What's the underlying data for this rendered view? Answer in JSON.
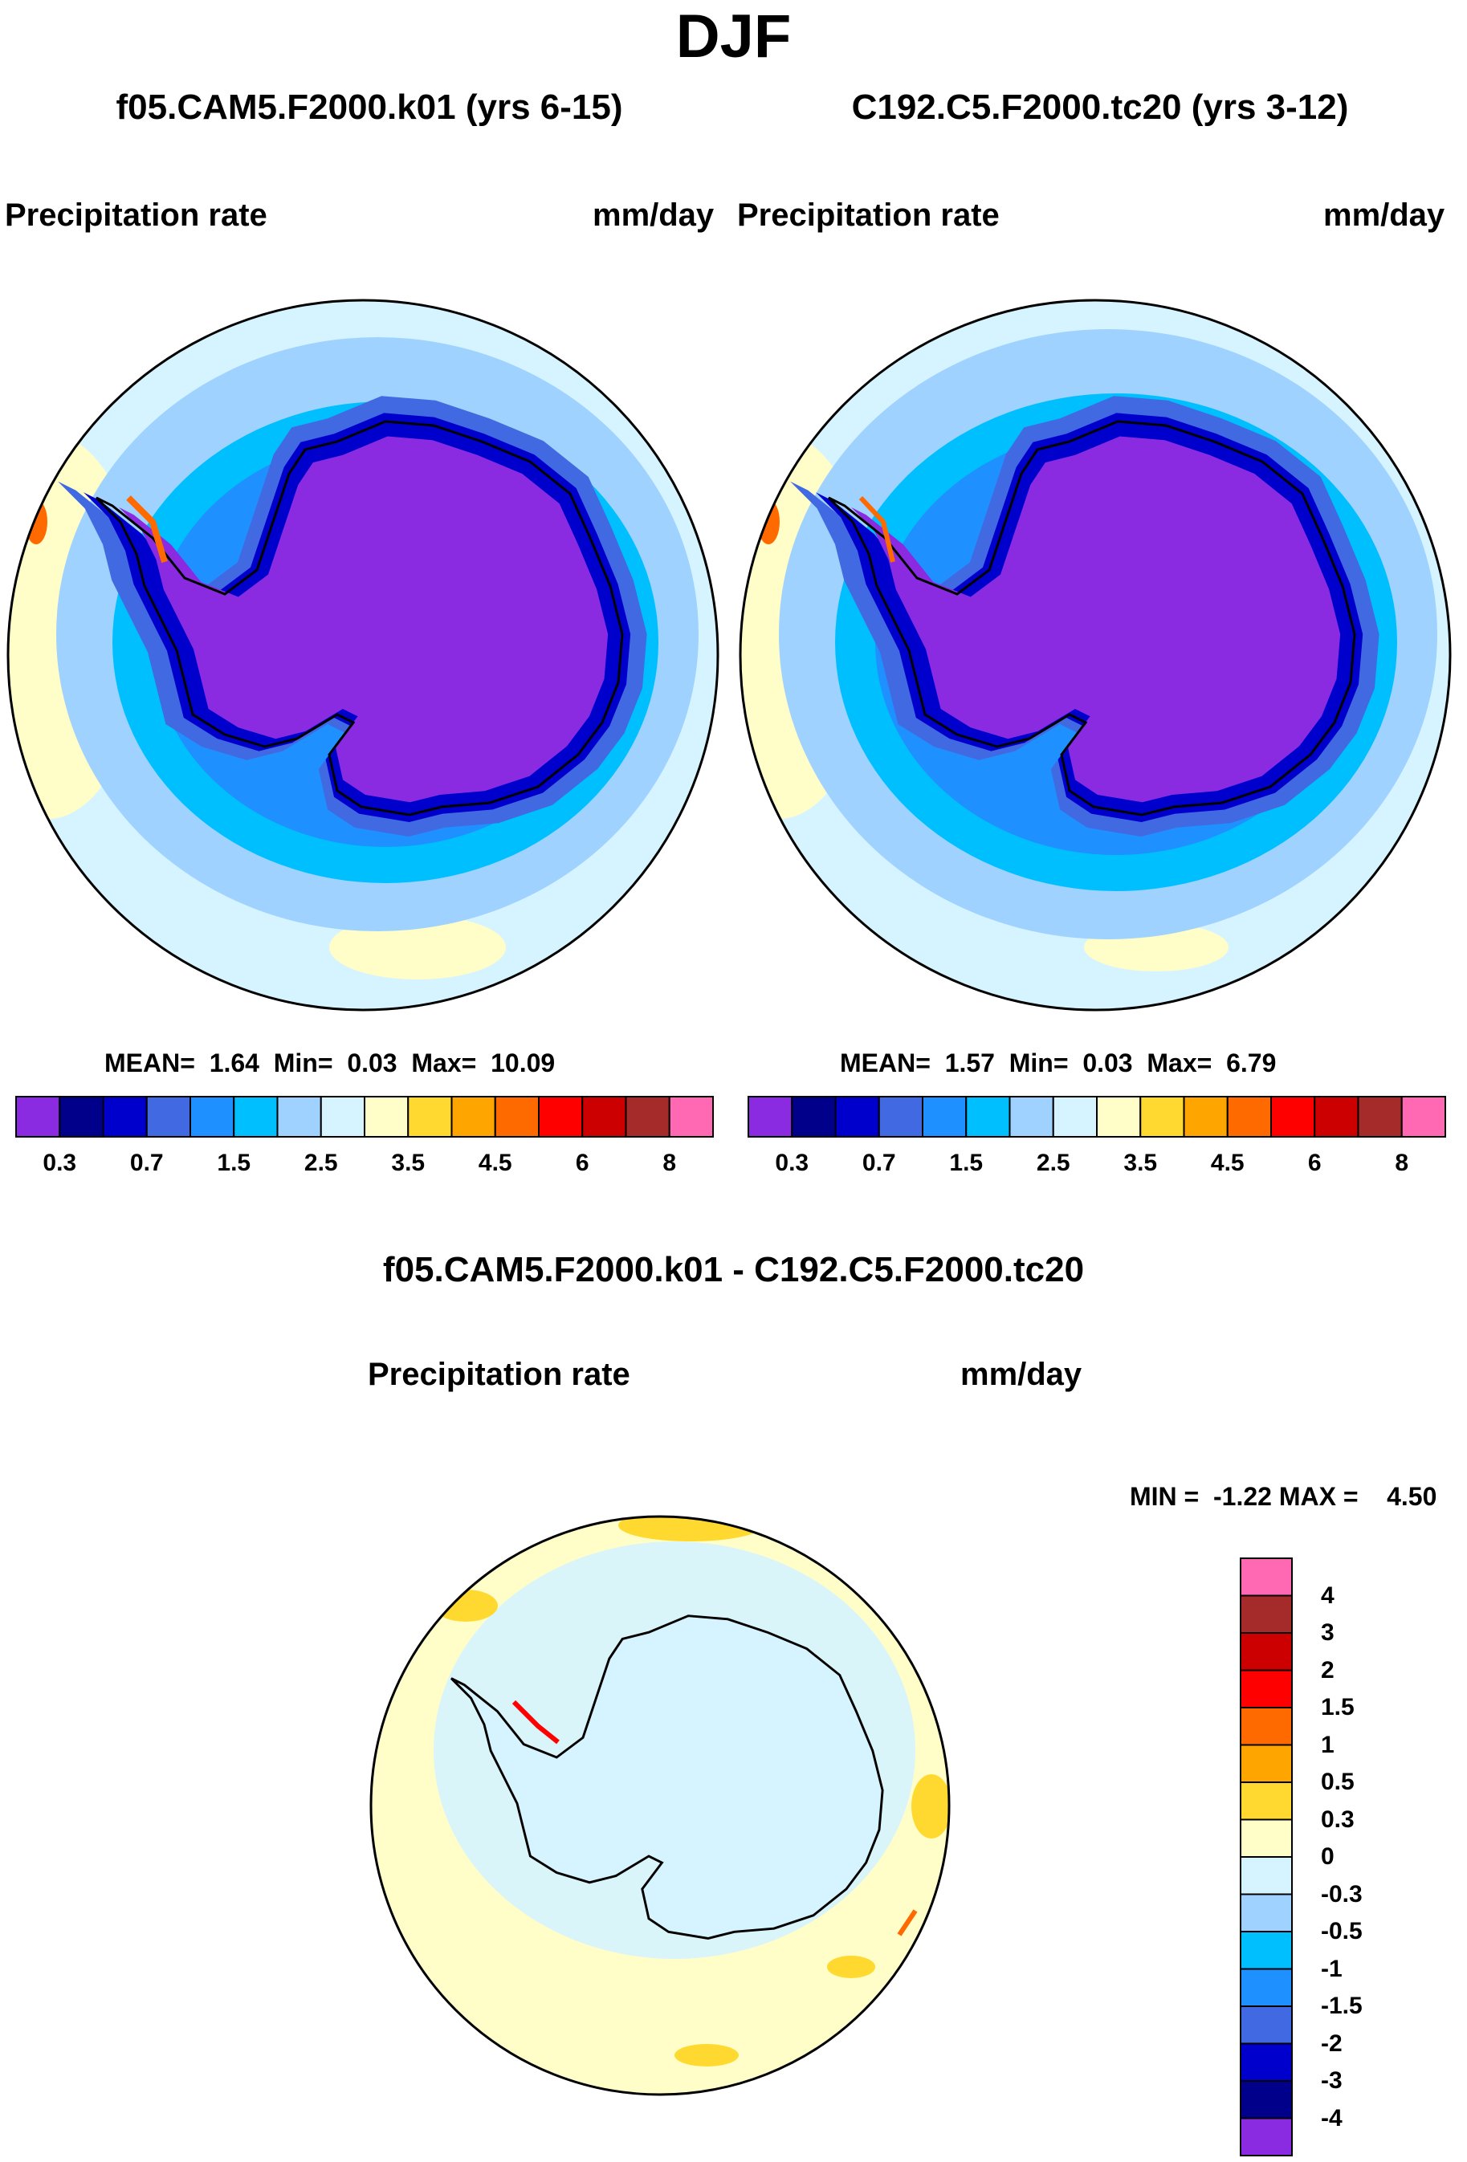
{
  "title": "DJF",
  "panels": [
    {
      "name": "f05.CAM5.F2000.k01 (yrs 6-15)",
      "variable": "Precipitation rate",
      "units": "mm/day",
      "stats": {
        "mean_label": "MEAN=",
        "mean": "1.64",
        "min_label": "Min=",
        "min": "0.03",
        "max_label": "Max=",
        "max": "10.09"
      }
    },
    {
      "name": "C192.C5.F2000.tc20 (yrs 3-12)",
      "variable": "Precipitation rate",
      "units": "mm/day",
      "stats": {
        "mean_label": "MEAN=",
        "mean": "1.57",
        "min_label": "Min=",
        "min": "0.03",
        "max_label": "Max=",
        "max": "6.79"
      }
    }
  ],
  "colorbar": {
    "colors": [
      "#8a2be2",
      "#00008b",
      "#0000cd",
      "#4169e1",
      "#1e90ff",
      "#00bfff",
      "#a0d2ff",
      "#d6f4ff",
      "#fffdc8",
      "#ffd92f",
      "#ffa500",
      "#ff6a00",
      "#ff0000",
      "#cc0000",
      "#a52a2a",
      "#ff69b4"
    ],
    "tick_labels": [
      "0.3",
      "0.7",
      "1.5",
      "2.5",
      "3.5",
      "4.5",
      "6",
      "8"
    ]
  },
  "difference": {
    "title": "f05.CAM5.F2000.k01 - C192.C5.F2000.tc20",
    "variable": "Precipitation rate",
    "units": "mm/day",
    "minmax": "MIN =  -1.22 MAX =    4.50",
    "colorbar": {
      "colors": [
        "#ff69b4",
        "#a52a2a",
        "#cc0000",
        "#ff0000",
        "#ff6a00",
        "#ffa500",
        "#ffd92f",
        "#fffdc8",
        "#d6f4ff",
        "#a0d2ff",
        "#00bfff",
        "#1e90ff",
        "#4169e1",
        "#0000cd",
        "#00008b",
        "#8a2be2"
      ],
      "tick_labels": [
        "4",
        "3",
        "2",
        "1.5",
        "1",
        "0.5",
        "0.3",
        "0",
        "-0.3",
        "-0.5",
        "-1",
        "-1.5",
        "-2",
        "-3",
        "-4"
      ]
    }
  },
  "map_colors": {
    "ocean_far": "#fffdc8",
    "ocean_mid": "#d6f4ff",
    "ocean_near": "#a0d2ff",
    "ring1": "#00bfff",
    "ring2": "#1e90ff",
    "ring3": "#4169e1",
    "coast": "#0000cd",
    "interior": "#8a2be2",
    "diff_bg": "#fffdc8",
    "diff_land": "#d6f4ff",
    "diff_pos": "#ffd92f"
  }
}
